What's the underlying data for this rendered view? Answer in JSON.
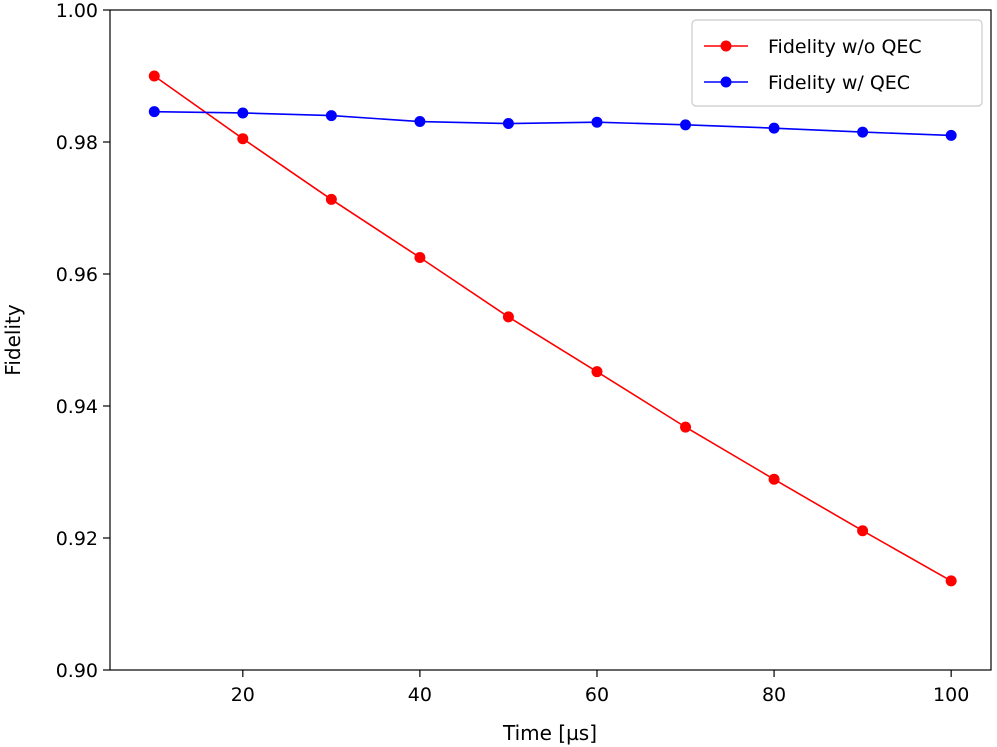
{
  "chart_data": {
    "type": "line",
    "title": "",
    "xlabel": "Time [µs]",
    "ylabel": "Fidelity",
    "xlim": [
      5,
      104.5
    ],
    "ylim": [
      0.9,
      1.0
    ],
    "xticks": [
      20,
      40,
      60,
      80,
      100
    ],
    "yticks": [
      0.9,
      0.92,
      0.94,
      0.96,
      0.98,
      1.0
    ],
    "xtick_labels": [
      "20",
      "40",
      "60",
      "80",
      "100"
    ],
    "ytick_labels": [
      "0.90",
      "0.92",
      "0.94",
      "0.96",
      "0.98",
      "1.00"
    ],
    "grid": false,
    "legend_position": "top-right",
    "x": [
      10,
      20,
      30,
      40,
      50,
      60,
      70,
      80,
      90,
      100
    ],
    "series": [
      {
        "name": "Fidelity w/o QEC",
        "color": "#ff0000",
        "marker": "circle",
        "values": [
          0.99,
          0.9805,
          0.9713,
          0.9625,
          0.9535,
          0.9452,
          0.9368,
          0.9289,
          0.9211,
          0.9135
        ]
      },
      {
        "name": "Fidelity w/ QEC",
        "color": "#0000ff",
        "marker": "circle",
        "values": [
          0.9846,
          0.9844,
          0.984,
          0.9831,
          0.9828,
          0.983,
          0.9826,
          0.9821,
          0.9815,
          0.981
        ]
      }
    ]
  }
}
